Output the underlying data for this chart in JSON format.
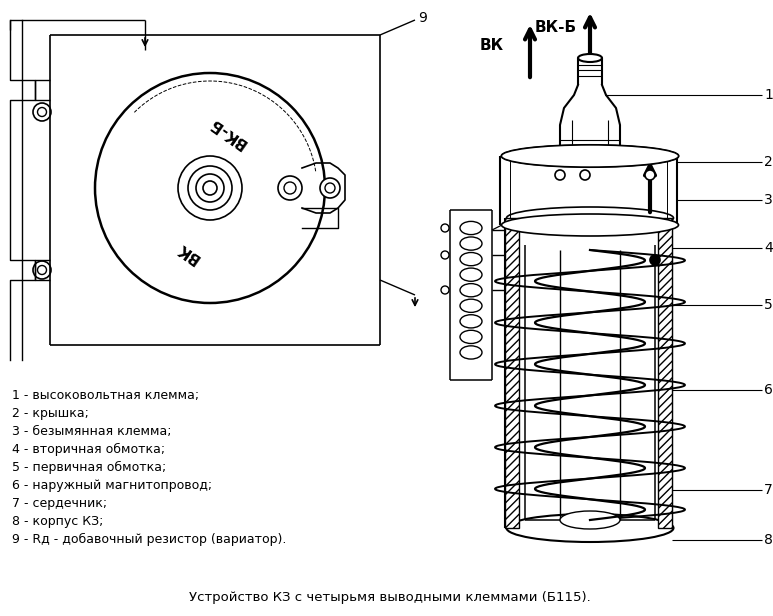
{
  "title": "Устройство КЗ с четырьмя выводными клеммами (Б115).",
  "bg_color": "#ffffff",
  "line_color": "#000000",
  "legend_items": [
    "1 - высоковольтная клемма;",
    "2 - крышка;",
    "3 - безымянная клемма;",
    "4 - вторичная обмотка;",
    "5 - первичная обмотка;",
    "6 - наружный магнитопровод;",
    "7 - сердечник;",
    "8 - корпус КЗ;",
    "9 - Rд - добавочный резистор (вариатор)."
  ],
  "label_VKB": "ВК-Б",
  "label_VK": "ВК",
  "figsize": [
    7.73,
    6.16
  ],
  "dpi": 100
}
